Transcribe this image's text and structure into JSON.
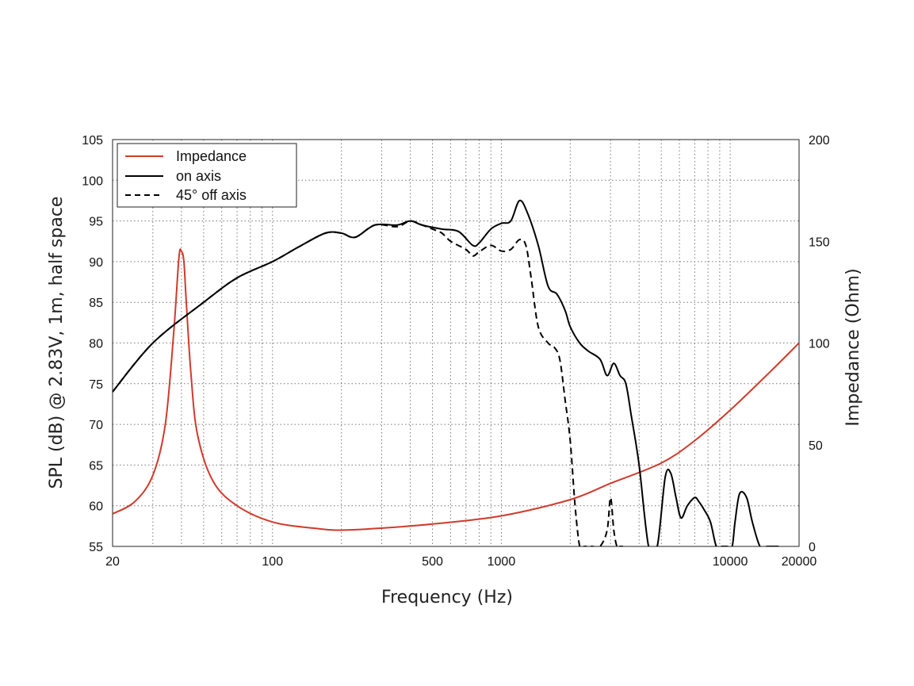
{
  "chart_data": {
    "type": "line",
    "xlabel": "Frequency (Hz)",
    "ylabel": "SPL (dB) @ 2.83V, 1m, half space",
    "y2label": "Impedance (Ohm)",
    "x_scale": "log",
    "xlim": [
      20,
      20000
    ],
    "ylim": [
      55,
      105
    ],
    "y2lim": [
      0,
      200
    ],
    "x_ticks": [
      20,
      100,
      500,
      1000,
      10000,
      20000
    ],
    "x_tick_labels": [
      "20",
      "100",
      "500",
      "1000",
      "10000",
      "20000"
    ],
    "y_ticks": [
      55,
      60,
      65,
      70,
      75,
      80,
      85,
      90,
      95,
      100,
      105
    ],
    "y_tick_labels": [
      "55",
      "60",
      "65",
      "70",
      "75",
      "80",
      "85",
      "90",
      "95",
      "100",
      "105"
    ],
    "y2_ticks": [
      0,
      50,
      100,
      150,
      200
    ],
    "y2_tick_labels": [
      "0",
      "50",
      "100",
      "150",
      "200"
    ],
    "grid": true,
    "legend_position": "top-left",
    "series": [
      {
        "name": "Impedance",
        "axis": "right",
        "color": "#d03a2c",
        "style": "solid",
        "x": [
          20,
          25,
          30,
          34,
          37,
          39,
          40,
          41,
          42,
          44,
          47,
          55,
          70,
          100,
          150,
          200,
          300,
          500,
          1000,
          2000,
          3000,
          5000,
          7000,
          10000,
          15000,
          20000
        ],
        "y": [
          16,
          22,
          35,
          60,
          105,
          142,
          145,
          140,
          120,
          85,
          55,
          32,
          20,
          12,
          9,
          8,
          9,
          11,
          15,
          23,
          31,
          41,
          52,
          67,
          86,
          100
        ]
      },
      {
        "name": "on axis",
        "axis": "left",
        "color": "#000000",
        "style": "solid",
        "x": [
          20,
          30,
          50,
          70,
          100,
          130,
          170,
          200,
          230,
          280,
          350,
          400,
          450,
          550,
          650,
          750,
          800,
          900,
          1000,
          1100,
          1200,
          1300,
          1450,
          1600,
          1750,
          1900,
          2000,
          2200,
          2400,
          2700,
          2900,
          3100,
          3300,
          3500,
          3700,
          4000,
          4400,
          4800,
          5200,
          5500,
          5800,
          6100,
          6500,
          7000,
          7300,
          7700,
          8200,
          8700,
          9200,
          9700,
          10200,
          10500,
          11000,
          11800,
          12500,
          13500,
          14500,
          15500,
          16300
        ],
        "y": [
          74,
          80,
          85,
          88,
          90,
          91.8,
          93.5,
          93.5,
          93,
          94.5,
          94.5,
          95,
          94.5,
          94,
          93.7,
          92,
          92.3,
          94,
          94.7,
          95,
          97.5,
          96,
          92,
          87,
          86,
          84,
          82,
          80,
          79,
          78,
          76,
          77.5,
          76,
          75,
          71,
          65,
          55,
          55,
          63.5,
          64,
          61,
          58.5,
          60,
          61,
          60.5,
          59.5,
          58,
          55,
          55,
          55,
          55,
          58,
          61.5,
          61,
          58,
          55,
          55,
          55,
          55
        ]
      },
      {
        "name": "45° off axis",
        "axis": "left",
        "color": "#000000",
        "style": "dashed",
        "x": [
          20,
          30,
          50,
          70,
          100,
          130,
          170,
          200,
          230,
          280,
          350,
          400,
          450,
          500,
          550,
          600,
          700,
          750,
          800,
          900,
          1000,
          1100,
          1200,
          1280,
          1350,
          1450,
          1600,
          1700,
          1800,
          1900,
          2000,
          2100,
          2200,
          2300,
          2400,
          2500,
          2700,
          2900,
          3000,
          3100,
          3200,
          3300,
          3400
        ],
        "y": [
          74,
          80,
          85,
          88,
          90,
          91.8,
          93.5,
          93.5,
          93,
          94.5,
          94.3,
          95,
          94.5,
          94,
          93.5,
          92.5,
          91.5,
          90.7,
          91.2,
          92,
          91.3,
          91.5,
          92.7,
          92,
          88,
          82,
          80,
          79.5,
          78,
          73,
          68,
          60,
          55,
          55,
          55,
          55,
          55,
          57,
          61,
          57,
          55,
          55,
          55
        ]
      }
    ]
  }
}
